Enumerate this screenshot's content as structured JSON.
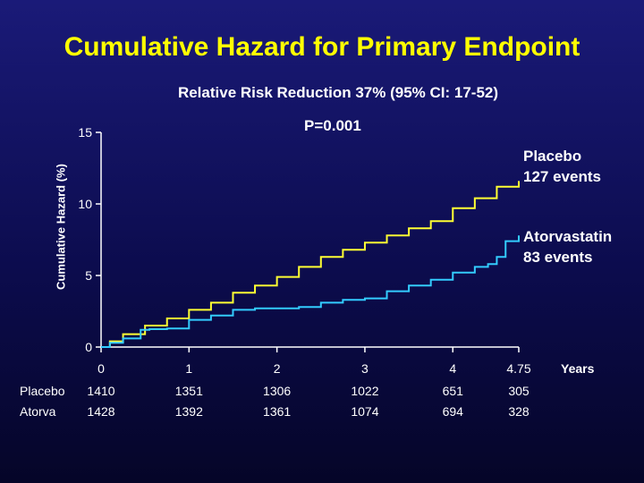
{
  "chart_data": {
    "type": "line",
    "title": "Cumulative Hazard for Primary Endpoint",
    "subtitle": "Relative Risk Reduction 37%  (95% CI: 17-52)",
    "annotation": "P=0.001",
    "ylabel": "Cumulative Hazard (%)",
    "xlabel": "Years",
    "xlim": [
      0,
      4.75
    ],
    "ylim": [
      0,
      15
    ],
    "x_ticks": [
      0,
      1,
      2,
      3,
      4,
      4.75
    ],
    "x_tick_labels": [
      "0",
      "1",
      "2",
      "3",
      "4",
      "4.75"
    ],
    "y_ticks": [
      0,
      5,
      10,
      15
    ],
    "y_tick_labels": [
      "0",
      "5",
      "10",
      "15"
    ],
    "grid": false,
    "series": [
      {
        "name": "Placebo",
        "label_line1": "Placebo",
        "label_line2": "127 events",
        "color": "#ffff33",
        "x": [
          0,
          0.1,
          0.25,
          0.5,
          0.75,
          1.0,
          1.25,
          1.5,
          1.75,
          2.0,
          2.25,
          2.5,
          2.75,
          3.0,
          3.25,
          3.5,
          3.75,
          4.0,
          4.25,
          4.5,
          4.75
        ],
        "y": [
          0,
          0.4,
          0.9,
          1.5,
          2.0,
          2.6,
          3.1,
          3.8,
          4.3,
          4.9,
          5.6,
          6.3,
          6.8,
          7.3,
          7.8,
          8.3,
          8.8,
          9.7,
          10.4,
          11.2,
          11.6
        ]
      },
      {
        "name": "Atorvastatin",
        "label_line1": "Atorvastatin",
        "label_line2": "83 events",
        "color": "#33ccff",
        "x": [
          0,
          0.1,
          0.25,
          0.45,
          0.55,
          0.75,
          1.0,
          1.25,
          1.5,
          1.75,
          2.0,
          2.25,
          2.5,
          2.75,
          3.0,
          3.25,
          3.5,
          3.75,
          4.0,
          4.25,
          4.4,
          4.5,
          4.6,
          4.75
        ],
        "y": [
          0,
          0.3,
          0.6,
          1.2,
          1.25,
          1.3,
          1.9,
          2.2,
          2.6,
          2.7,
          2.7,
          2.8,
          3.1,
          3.3,
          3.4,
          3.9,
          4.3,
          4.7,
          5.2,
          5.6,
          5.8,
          6.3,
          7.4,
          7.8
        ]
      }
    ]
  },
  "table": {
    "rows": [
      {
        "label": "Placebo",
        "values": [
          "1410",
          "1351",
          "1306",
          "1022",
          "651",
          "305"
        ]
      },
      {
        "label": "Atorva",
        "values": [
          "1428",
          "1392",
          "1361",
          "1074",
          "694",
          "328"
        ]
      }
    ]
  }
}
